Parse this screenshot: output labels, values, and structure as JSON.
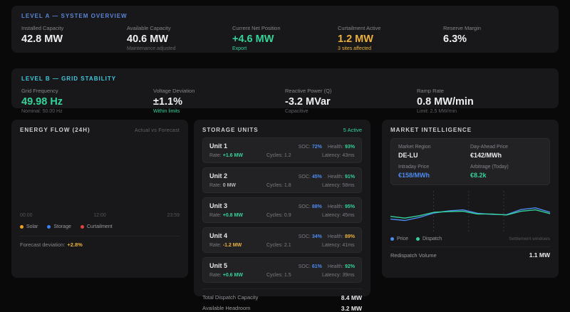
{
  "colors": {
    "background": "#09090a",
    "panel": "#18181a",
    "card": "#222225",
    "accent_blue_header": "#5a85d6",
    "accent_cyan_header": "#40c8dc",
    "green": "#34d399",
    "amber": "#ecb13d",
    "blue": "#4d8bf0",
    "red": "#e04040",
    "solar": "#f0a020",
    "storage": "#3b82f6",
    "curtailment": "#e04040"
  },
  "level_a": {
    "title": "LEVEL A — SYSTEM OVERVIEW",
    "metrics": [
      {
        "label": "Installed Capacity",
        "value": "42.8 MW",
        "sub": ""
      },
      {
        "label": "Available Capacity",
        "value": "40.6 MW",
        "sub": "Maintenance adjusted"
      },
      {
        "label": "Current Net Position",
        "value": "+4.6 MW",
        "sub": "Export"
      },
      {
        "label": "Curtailment Active",
        "value": "1.2 MW",
        "sub": "3 sites affected"
      },
      {
        "label": "Reserve Margin",
        "value": "6.3%",
        "sub": ""
      }
    ]
  },
  "level_b": {
    "title": "LEVEL B — GRID STABILITY",
    "metrics": [
      {
        "label": "Grid Frequency",
        "value": "49.98 Hz",
        "sub": "Nominal: 50.00 Hz"
      },
      {
        "label": "Voltage Deviation",
        "value": "±1.1%",
        "sub": "Within limits"
      },
      {
        "label": "Reactive Power (Q)",
        "value": "-3.2 MVar",
        "sub": "Capacitive"
      },
      {
        "label": "Ramp Rate",
        "value": "0.8 MW/min",
        "sub": "Limit: 2.5 MW/min"
      }
    ]
  },
  "energy_flow": {
    "title": "ENERGY FLOW (24H)",
    "subtitle": "Actual vs Forecast",
    "x_ticks": [
      "00:00",
      "12:00",
      "23:59"
    ],
    "legend": [
      {
        "label": "Solar",
        "color": "#f0a020"
      },
      {
        "label": "Storage",
        "color": "#3b82f6"
      },
      {
        "label": "Curtailment",
        "color": "#e04040"
      }
    ],
    "footer_label": "Forecast deviation:",
    "footer_value": "+2.8%"
  },
  "storage": {
    "title": "STORAGE UNITS",
    "status": "5 Active",
    "labels": {
      "soc": "SOC:",
      "health": "Health:",
      "rate": "Rate:"
    },
    "units": [
      {
        "name": "Unit 1",
        "soc": "72%",
        "health": "93%",
        "rate": "+1.6 MW",
        "cycles": "Cycles: 1.2",
        "latency": "Latency: 43ms"
      },
      {
        "name": "Unit 2",
        "soc": "45%",
        "health": "91%",
        "rate": "0 MW",
        "cycles": "Cycles: 1.8",
        "latency": "Latency: 58ms"
      },
      {
        "name": "Unit 3",
        "soc": "88%",
        "health": "95%",
        "rate": "+0.8 MW",
        "cycles": "Cycles: 0.9",
        "latency": "Latency: 45ms"
      },
      {
        "name": "Unit 4",
        "soc": "34%",
        "health": "89%",
        "rate": "-1.2 MW",
        "cycles": "Cycles: 2.1",
        "latency": "Latency: 41ms"
      },
      {
        "name": "Unit 5",
        "soc": "61%",
        "health": "92%",
        "rate": "+0.6 MW",
        "cycles": "Cycles: 1.5",
        "latency": "Latency: 39ms"
      }
    ],
    "totals": [
      {
        "label": "Total Dispatch Capacity",
        "value": "8.4 MW"
      },
      {
        "label": "Available Headroom",
        "value": "3.2 MW"
      }
    ]
  },
  "market": {
    "title": "MARKET INTELLIGENCE",
    "cards": [
      {
        "label": "Market Region",
        "value": "DE-LU"
      },
      {
        "label": "Day-Ahead Price",
        "value": "€142/MWh"
      },
      {
        "label": "Intraday Price",
        "value": "€158/MWh"
      },
      {
        "label": "Arbitrage (Today)",
        "value": "€8.2k"
      }
    ],
    "legend": [
      {
        "label": "Price",
        "color": "#4d8bf0"
      },
      {
        "label": "Dispatch",
        "color": "#34d399"
      }
    ],
    "legend_note": "Settlement windows",
    "footer_label": "Redispatch Volume",
    "footer_value": "1.1 MW"
  },
  "chart_data": [
    {
      "id": "energy_flow",
      "type": "line",
      "title": "ENERGY FLOW (24H)",
      "subtitle": "Actual vs Forecast",
      "x_tick_labels": [
        "00:00",
        "12:00",
        "23:59"
      ],
      "legend_entries": [
        "Solar",
        "Storage",
        "Curtailment"
      ],
      "legend_colors": [
        "#f0a020",
        "#3b82f6",
        "#e04040"
      ],
      "series": [],
      "annotation": "Forecast deviation: +2.8%",
      "note": "plot area renders blank in screenshot; no visible series traces"
    },
    {
      "id": "market",
      "type": "line",
      "legend_entries": [
        "Price",
        "Dispatch"
      ],
      "legend_position": "bottom-left",
      "grid": "vertical-dashed",
      "gridlines_x_pct": [
        27,
        49,
        71
      ],
      "ylim": [
        0,
        100
      ],
      "series": [
        {
          "name": "Price",
          "color": "#4d8bf0",
          "values": [
            30,
            26,
            35,
            48,
            54,
            57,
            47,
            44,
            43,
            58,
            63,
            50
          ]
        },
        {
          "name": "Dispatch",
          "color": "#34d399",
          "values": [
            38,
            33,
            40,
            50,
            52,
            53,
            45,
            45,
            42,
            53,
            57,
            46
          ]
        }
      ],
      "annotation_right": "Settlement windows"
    }
  ]
}
